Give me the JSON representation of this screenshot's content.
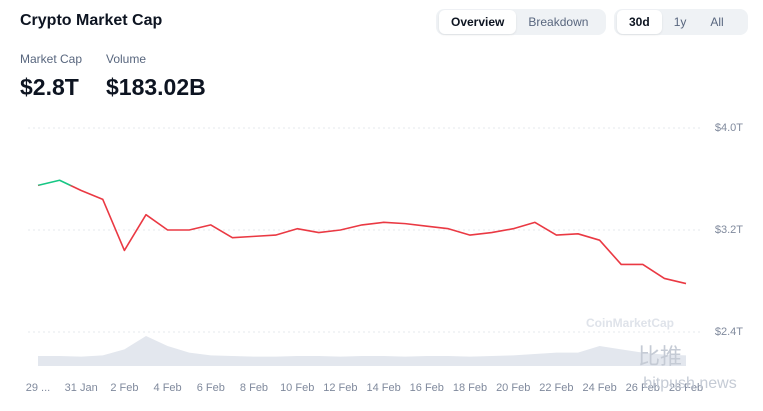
{
  "header": {
    "title": "Crypto Market Cap",
    "view_tabs": [
      "Overview",
      "Breakdown"
    ],
    "range_tabs": [
      "30d",
      "1y",
      "All"
    ],
    "stats": [
      {
        "label": "Market Cap",
        "value": "$2.8T"
      },
      {
        "label": "Volume",
        "value": "$183.02B"
      }
    ]
  },
  "watermarks": [
    "CoinMarketCap",
    "比推",
    "bitpush.news"
  ],
  "chart_data": {
    "type": "line",
    "categories": [
      "29 ...",
      null,
      "31 Jan",
      null,
      "2 Feb",
      null,
      "4 Feb",
      null,
      "6 Feb",
      null,
      "8 Feb",
      null,
      "10 Feb",
      null,
      "12 Feb",
      null,
      "14 Feb",
      null,
      "16 Feb",
      null,
      "18 Feb",
      null,
      "20 Feb",
      null,
      "22 Feb",
      null,
      "24 Feb",
      null,
      "26 Feb",
      null,
      "28 Feb"
    ],
    "series": [
      {
        "name": "Market Cap",
        "up_color": "#16c784",
        "down_color": "#ea3943",
        "values": [
          3.55,
          3.59,
          3.51,
          3.44,
          3.04,
          3.32,
          3.2,
          3.2,
          3.24,
          3.14,
          3.15,
          3.16,
          3.21,
          3.18,
          3.2,
          3.24,
          3.26,
          3.25,
          3.23,
          3.21,
          3.16,
          3.18,
          3.21,
          3.26,
          3.16,
          3.17,
          3.12,
          2.93,
          2.93,
          2.82,
          2.78
        ]
      }
    ],
    "volume": {
      "color": "#e3e7ee",
      "lim": [
        0,
        600
      ],
      "values": [
        150,
        150,
        140,
        160,
        250,
        450,
        300,
        200,
        160,
        150,
        140,
        140,
        150,
        150,
        140,
        150,
        150,
        140,
        150,
        150,
        140,
        150,
        160,
        180,
        200,
        200,
        300,
        250,
        200,
        170,
        160
      ]
    },
    "ylim": [
      2.4,
      4.0
    ],
    "yticks": [
      {
        "value": 2.4,
        "label": "$2.4T"
      },
      {
        "value": 3.2,
        "label": "$3.2T"
      },
      {
        "value": 4.0,
        "label": "$4.0T"
      }
    ],
    "grid": true
  }
}
